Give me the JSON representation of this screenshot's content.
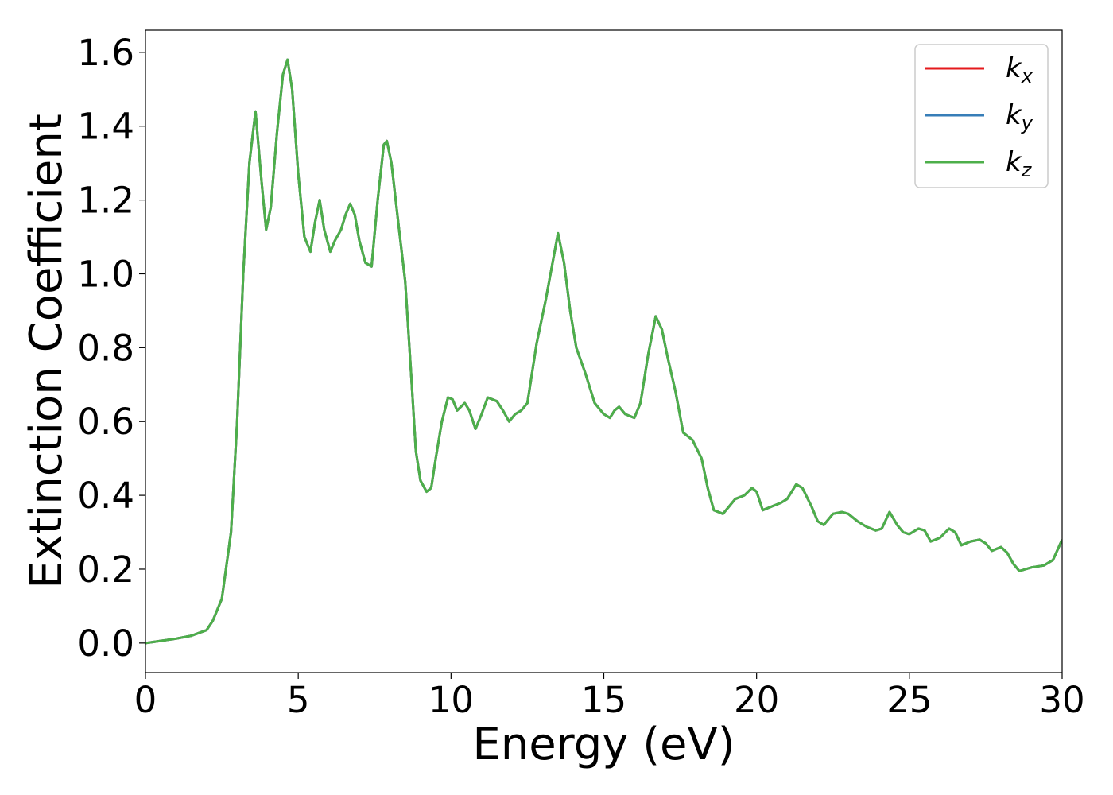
{
  "chart_data": {
    "type": "line",
    "xlabel": "Energy (eV)",
    "ylabel": "Extinction Coefficient",
    "xlim": [
      0,
      30
    ],
    "ylim": [
      -0.08,
      1.66
    ],
    "xticks": [
      0,
      5,
      10,
      15,
      20,
      25,
      30
    ],
    "yticks": [
      0.0,
      0.2,
      0.4,
      0.6,
      0.8,
      1.0,
      1.2,
      1.4,
      1.6
    ],
    "xtick_labels": [
      "0",
      "5",
      "10",
      "15",
      "20",
      "25",
      "30"
    ],
    "ytick_labels": [
      "0.0",
      "0.2",
      "0.4",
      "0.6",
      "0.8",
      "1.0",
      "1.2",
      "1.4",
      "1.6"
    ],
    "grid": false,
    "legend_position": "top-right",
    "x": [
      0,
      0.5,
      1.0,
      1.5,
      2.0,
      2.2,
      2.5,
      2.8,
      3.0,
      3.2,
      3.4,
      3.6,
      3.8,
      3.95,
      4.1,
      4.3,
      4.5,
      4.65,
      4.8,
      5.0,
      5.2,
      5.4,
      5.55,
      5.7,
      5.85,
      6.05,
      6.2,
      6.4,
      6.55,
      6.7,
      6.85,
      7.0,
      7.2,
      7.4,
      7.6,
      7.8,
      7.9,
      8.05,
      8.3,
      8.5,
      8.7,
      8.85,
      9.0,
      9.2,
      9.35,
      9.5,
      9.7,
      9.9,
      10.05,
      10.2,
      10.45,
      10.6,
      10.8,
      11.0,
      11.2,
      11.5,
      11.7,
      11.9,
      12.1,
      12.3,
      12.5,
      12.8,
      13.1,
      13.3,
      13.5,
      13.7,
      13.9,
      14.1,
      14.4,
      14.7,
      15.0,
      15.2,
      15.35,
      15.5,
      15.7,
      16.0,
      16.2,
      16.45,
      16.7,
      16.9,
      17.1,
      17.35,
      17.6,
      17.9,
      18.2,
      18.4,
      18.6,
      18.9,
      19.1,
      19.3,
      19.6,
      19.85,
      20.0,
      20.2,
      20.5,
      20.8,
      21.0,
      21.3,
      21.5,
      21.8,
      22.0,
      22.2,
      22.5,
      22.8,
      23.0,
      23.3,
      23.6,
      23.9,
      24.1,
      24.35,
      24.6,
      24.8,
      25.0,
      25.3,
      25.5,
      25.7,
      26.0,
      26.3,
      26.5,
      26.7,
      27.0,
      27.3,
      27.5,
      27.7,
      28.0,
      28.2,
      28.4,
      28.6,
      28.8,
      29.0,
      29.4,
      29.7,
      30.0
    ],
    "series": [
      {
        "name": "k_x",
        "color": "#e41a1c",
        "values": [
          0.0,
          0.006,
          0.012,
          0.02,
          0.035,
          0.06,
          0.12,
          0.3,
          0.6,
          1.0,
          1.3,
          1.44,
          1.25,
          1.12,
          1.18,
          1.38,
          1.54,
          1.58,
          1.5,
          1.27,
          1.1,
          1.06,
          1.14,
          1.2,
          1.12,
          1.06,
          1.09,
          1.12,
          1.16,
          1.19,
          1.16,
          1.09,
          1.03,
          1.02,
          1.2,
          1.35,
          1.36,
          1.3,
          1.12,
          0.98,
          0.72,
          0.52,
          0.44,
          0.41,
          0.42,
          0.5,
          0.6,
          0.665,
          0.66,
          0.63,
          0.65,
          0.63,
          0.58,
          0.62,
          0.665,
          0.655,
          0.63,
          0.6,
          0.62,
          0.63,
          0.65,
          0.81,
          0.93,
          1.02,
          1.11,
          1.03,
          0.9,
          0.8,
          0.73,
          0.65,
          0.62,
          0.61,
          0.63,
          0.64,
          0.62,
          0.61,
          0.65,
          0.78,
          0.885,
          0.85,
          0.77,
          0.68,
          0.57,
          0.55,
          0.5,
          0.42,
          0.36,
          0.35,
          0.37,
          0.39,
          0.4,
          0.42,
          0.41,
          0.36,
          0.37,
          0.38,
          0.39,
          0.43,
          0.42,
          0.37,
          0.33,
          0.32,
          0.35,
          0.355,
          0.35,
          0.33,
          0.315,
          0.305,
          0.31,
          0.355,
          0.32,
          0.3,
          0.295,
          0.31,
          0.305,
          0.275,
          0.285,
          0.31,
          0.3,
          0.265,
          0.275,
          0.28,
          0.27,
          0.25,
          0.26,
          0.245,
          0.215,
          0.195,
          0.2,
          0.205,
          0.21,
          0.225,
          0.28
        ]
      },
      {
        "name": "k_y",
        "color": "#377eb8",
        "values": [
          0.0,
          0.006,
          0.012,
          0.02,
          0.035,
          0.06,
          0.12,
          0.3,
          0.6,
          1.0,
          1.3,
          1.44,
          1.25,
          1.12,
          1.18,
          1.38,
          1.54,
          1.58,
          1.5,
          1.27,
          1.1,
          1.06,
          1.14,
          1.2,
          1.12,
          1.06,
          1.09,
          1.12,
          1.16,
          1.19,
          1.16,
          1.09,
          1.03,
          1.02,
          1.2,
          1.35,
          1.36,
          1.3,
          1.12,
          0.98,
          0.72,
          0.52,
          0.44,
          0.41,
          0.42,
          0.5,
          0.6,
          0.665,
          0.66,
          0.63,
          0.65,
          0.63,
          0.58,
          0.62,
          0.665,
          0.655,
          0.63,
          0.6,
          0.62,
          0.63,
          0.65,
          0.81,
          0.93,
          1.02,
          1.11,
          1.03,
          0.9,
          0.8,
          0.73,
          0.65,
          0.62,
          0.61,
          0.63,
          0.64,
          0.62,
          0.61,
          0.65,
          0.78,
          0.885,
          0.85,
          0.77,
          0.68,
          0.57,
          0.55,
          0.5,
          0.42,
          0.36,
          0.35,
          0.37,
          0.39,
          0.4,
          0.42,
          0.41,
          0.36,
          0.37,
          0.38,
          0.39,
          0.43,
          0.42,
          0.37,
          0.33,
          0.32,
          0.35,
          0.355,
          0.35,
          0.33,
          0.315,
          0.305,
          0.31,
          0.355,
          0.32,
          0.3,
          0.295,
          0.31,
          0.305,
          0.275,
          0.285,
          0.31,
          0.3,
          0.265,
          0.275,
          0.28,
          0.27,
          0.25,
          0.26,
          0.245,
          0.215,
          0.195,
          0.2,
          0.205,
          0.21,
          0.225,
          0.28
        ]
      },
      {
        "name": "k_z",
        "color": "#4daf4a",
        "values": [
          0.0,
          0.006,
          0.012,
          0.02,
          0.035,
          0.06,
          0.12,
          0.3,
          0.6,
          1.0,
          1.3,
          1.44,
          1.25,
          1.12,
          1.18,
          1.38,
          1.54,
          1.58,
          1.5,
          1.27,
          1.1,
          1.06,
          1.14,
          1.2,
          1.12,
          1.06,
          1.09,
          1.12,
          1.16,
          1.19,
          1.16,
          1.09,
          1.03,
          1.02,
          1.2,
          1.35,
          1.36,
          1.3,
          1.12,
          0.98,
          0.72,
          0.52,
          0.44,
          0.41,
          0.42,
          0.5,
          0.6,
          0.665,
          0.66,
          0.63,
          0.65,
          0.63,
          0.58,
          0.62,
          0.665,
          0.655,
          0.63,
          0.6,
          0.62,
          0.63,
          0.65,
          0.81,
          0.93,
          1.02,
          1.11,
          1.03,
          0.9,
          0.8,
          0.73,
          0.65,
          0.62,
          0.61,
          0.63,
          0.64,
          0.62,
          0.61,
          0.65,
          0.78,
          0.885,
          0.85,
          0.77,
          0.68,
          0.57,
          0.55,
          0.5,
          0.42,
          0.36,
          0.35,
          0.37,
          0.39,
          0.4,
          0.42,
          0.41,
          0.36,
          0.37,
          0.38,
          0.39,
          0.43,
          0.42,
          0.37,
          0.33,
          0.32,
          0.35,
          0.355,
          0.35,
          0.33,
          0.315,
          0.305,
          0.31,
          0.355,
          0.32,
          0.3,
          0.295,
          0.31,
          0.305,
          0.275,
          0.285,
          0.31,
          0.3,
          0.265,
          0.275,
          0.28,
          0.27,
          0.25,
          0.26,
          0.245,
          0.215,
          0.195,
          0.2,
          0.205,
          0.21,
          0.225,
          0.28
        ]
      }
    ],
    "legend": [
      {
        "base": "k",
        "sub": "x",
        "color": "#e41a1c"
      },
      {
        "base": "k",
        "sub": "y",
        "color": "#377eb8"
      },
      {
        "base": "k",
        "sub": "z",
        "color": "#4daf4a"
      }
    ]
  }
}
